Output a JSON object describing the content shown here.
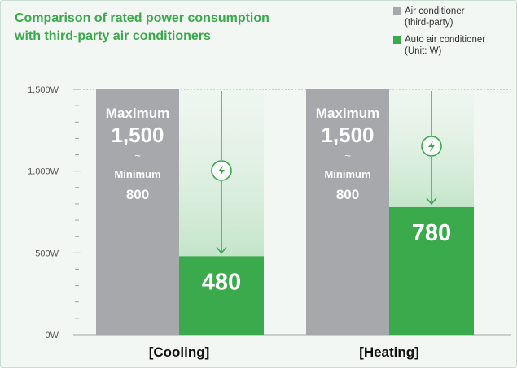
{
  "title_lines": [
    "Comparison of rated power consumption",
    "with third-party air conditioners"
  ],
  "legend": {
    "third_party": {
      "line1": "Air conditioner",
      "line2": "(third-party)",
      "color": "#a7a8ab"
    },
    "auto": {
      "line1": "Auto air conditioner",
      "line2": "(Unit: W)",
      "color": "#3aaa4c"
    }
  },
  "chart_data": {
    "type": "bar",
    "title": "Comparison of rated power consumption with third-party air conditioners",
    "unit": "W",
    "categories": [
      "[Cooling]",
      "[Heating]"
    ],
    "series": [
      {
        "name": "Air conditioner (third-party)",
        "values": [
          1500,
          1500
        ],
        "range_min": [
          800,
          800
        ],
        "color": "#a7a8ab"
      },
      {
        "name": "Auto air conditioner",
        "values": [
          480,
          780
        ],
        "color": "#3aaa4c"
      }
    ],
    "ylim": [
      0,
      1500
    ],
    "yticks": [
      0,
      500,
      1000,
      1500
    ],
    "ytick_labels": [
      "0W",
      "500W",
      "1,000W",
      "1,500W"
    ],
    "minor_tick_step": 100,
    "gray_bar_text": {
      "max_label": "Maximum",
      "max_value": "1,500",
      "separator": "~",
      "min_label": "Minimum",
      "min_value": "800"
    },
    "value_labels": [
      "480",
      "780"
    ],
    "reduction_arrow_icon": "lightning-bolt-icon",
    "grid": false,
    "legend_position": "top-right"
  }
}
